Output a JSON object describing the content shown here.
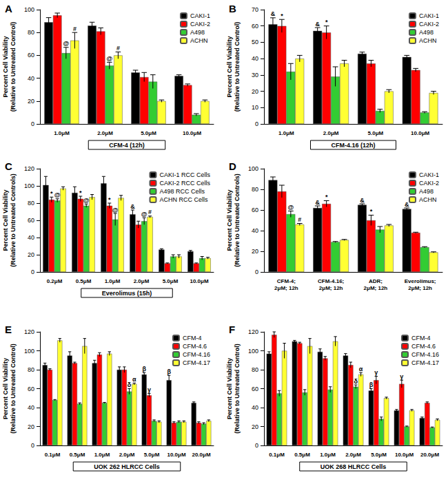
{
  "chart_data": [
    {
      "type": "bar",
      "title": "A",
      "ylabel": "Percent Cell Viability\n(Relative to Untreated Control)",
      "xlabel": "CFM-4 (12h)",
      "categories": [
        "1.0μM",
        "2.0μM",
        "5.0μM",
        "10.0μM"
      ],
      "ylim": [
        0,
        100
      ],
      "yticks": [
        0,
        20,
        40,
        60,
        80,
        100
      ],
      "grid": false,
      "legend": "top-right",
      "series": [
        {
          "name": "CAKI-1",
          "color": "#000000",
          "values": [
            89,
            86,
            45,
            42
          ],
          "errors": [
            4,
            3,
            2,
            1
          ],
          "annotations": [
            null,
            null,
            null,
            null
          ]
        },
        {
          "name": "CAKI-2",
          "color": "#ff0000",
          "values": [
            95,
            81,
            41,
            34
          ],
          "errors": [
            2,
            3,
            4,
            1
          ],
          "annotations": [
            null,
            null,
            null,
            null
          ]
        },
        {
          "name": "A498",
          "color": "#33cc33",
          "values": [
            62,
            51,
            37,
            8
          ],
          "errors": [
            5,
            3,
            6,
            1
          ],
          "annotations": [
            "@",
            "@",
            null,
            null
          ]
        },
        {
          "name": "ACHN",
          "color": "#ffff33",
          "values": [
            73,
            60,
            20,
            20
          ],
          "errors": [
            7,
            3,
            1,
            1
          ],
          "annotations": [
            "#",
            "#",
            null,
            null
          ]
        }
      ]
    },
    {
      "type": "bar",
      "title": "B",
      "ylabel": "Percent Cell Viability\n(Relative to Untreated Control)",
      "xlabel": "CFM-4.16 (12h)",
      "categories": [
        "1.0μM",
        "2.0μM",
        "5.0μM",
        "10.0μM"
      ],
      "ylim": [
        0,
        70
      ],
      "yticks": [
        0,
        10,
        20,
        30,
        40,
        50,
        60,
        70
      ],
      "grid": false,
      "legend": "top-right",
      "series": [
        {
          "name": "CAKI-1",
          "color": "#000000",
          "values": [
            61,
            57,
            43,
            41
          ],
          "errors": [
            4,
            2,
            1,
            1
          ],
          "annotations": [
            "&",
            "&",
            null,
            null
          ]
        },
        {
          "name": "CAKI-2",
          "color": "#ff0000",
          "values": [
            60,
            56,
            37,
            33
          ],
          "errors": [
            4,
            4,
            2,
            1
          ],
          "annotations": [
            "*",
            "*",
            null,
            null
          ]
        },
        {
          "name": "A498",
          "color": "#33cc33",
          "values": [
            32,
            29,
            8,
            7
          ],
          "errors": [
            5,
            6,
            1,
            0.5
          ],
          "annotations": [
            null,
            null,
            null,
            null
          ]
        },
        {
          "name": "ACHN",
          "color": "#ffff33",
          "values": [
            40,
            37,
            20,
            19
          ],
          "errors": [
            2,
            2,
            1,
            1
          ],
          "annotations": [
            null,
            null,
            null,
            null
          ]
        }
      ]
    },
    {
      "type": "bar",
      "title": "C",
      "ylabel": "Percent Cell Viability\n(Relative to Untreated Controls)",
      "xlabel": "Everolimus (15h)",
      "categories": [
        "0.2μM",
        "0.5μM",
        "1.0μM",
        "2.0μM",
        "5.0μM",
        "10.0μM"
      ],
      "ylim": [
        0,
        120
      ],
      "yticks": [
        0,
        20,
        40,
        60,
        80,
        100,
        120
      ],
      "grid": false,
      "legend": "top-right",
      "series": [
        {
          "name": "CAKI-1 RCC Cells",
          "color": "#000000",
          "values": [
            101,
            92,
            103,
            67,
            26,
            24
          ],
          "errors": [
            10,
            7,
            8,
            5,
            1,
            1
          ],
          "annotations": [
            null,
            null,
            null,
            "&",
            null,
            null
          ]
        },
        {
          "name": "CAKI-2 RCC Cells",
          "color": "#ff0000",
          "values": [
            84,
            85,
            77,
            55,
            10,
            10
          ],
          "errors": [
            3,
            3,
            3,
            4,
            0.5,
            0.5
          ],
          "annotations": [
            "*",
            "*",
            "*",
            null,
            null,
            null
          ]
        },
        {
          "name": "A498 RCC Cells",
          "color": "#33cc33",
          "values": [
            83,
            77,
            61,
            59,
            18,
            16
          ],
          "errors": [
            2,
            2,
            7,
            4,
            2,
            2
          ],
          "annotations": [
            "@",
            "@",
            "@",
            "@",
            null,
            null
          ]
        },
        {
          "name": "ACHN RCC Cells",
          "color": "#ffff33",
          "values": [
            97,
            87,
            86,
            64,
            18,
            16
          ],
          "errors": [
            2,
            3,
            3,
            1,
            2,
            1
          ],
          "annotations": [
            null,
            null,
            null,
            "#",
            null,
            null
          ]
        }
      ]
    },
    {
      "type": "bar",
      "title": "D",
      "ylabel": "Percent Cell Viability\n(Relative to Untreated Controls)",
      "categories": [
        "CFM-4;\n2μM; 12h",
        "CFM-4.16;\n2μM; 12h",
        "ADR;\n2μM; 12h",
        "Everolimus;\n2μM; 12h"
      ],
      "ylim": [
        0,
        100
      ],
      "yticks": [
        0,
        20,
        40,
        60,
        80,
        100
      ],
      "grid": false,
      "legend": "top-right",
      "series": [
        {
          "name": "CAKI-1",
          "color": "#000000",
          "values": [
            89,
            62,
            65,
            61
          ],
          "errors": [
            3,
            2,
            1,
            1
          ],
          "annotations": [
            null,
            "&",
            "&",
            "&"
          ]
        },
        {
          "name": "CAKI-2",
          "color": "#ff0000",
          "values": [
            78,
            66,
            50,
            38
          ],
          "errors": [
            6,
            3,
            5,
            0.5
          ],
          "annotations": [
            null,
            "*",
            "*",
            null
          ]
        },
        {
          "name": "A498",
          "color": "#33cc33",
          "values": [
            56,
            29,
            41,
            24
          ],
          "errors": [
            3,
            0.5,
            3,
            0.5
          ],
          "annotations": [
            "@",
            null,
            null,
            null
          ]
        },
        {
          "name": "ACHN",
          "color": "#ffff33",
          "values": [
            46,
            31,
            45,
            19
          ],
          "errors": [
            1,
            0.5,
            1,
            0.5
          ],
          "annotations": [
            "#",
            null,
            null,
            null
          ]
        }
      ]
    },
    {
      "type": "bar",
      "title": "E",
      "ylabel": "Percent Cell Viability\n(Relative to Untreated Control)",
      "xlabel": "UOK 262 HLRCC Cells",
      "categories": [
        "0.1μM",
        "0.5μM",
        "1.0μM",
        "2.0μM",
        "5.0μM",
        "10.0μM",
        "20.0μM"
      ],
      "ylim": [
        0,
        120
      ],
      "yticks": [
        0,
        20,
        40,
        60,
        80,
        100,
        120
      ],
      "grid": false,
      "legend": "top-right",
      "series": [
        {
          "name": "CFM-4",
          "color": "#000000",
          "values": [
            85,
            95,
            87,
            80,
            75,
            69,
            45
          ],
          "errors": [
            2,
            4,
            3,
            3,
            2,
            5,
            1
          ],
          "annotations": [
            null,
            null,
            null,
            null,
            "β",
            "β",
            null
          ]
        },
        {
          "name": "CFM-4.6",
          "color": "#ff0000",
          "values": [
            80,
            87,
            96,
            80,
            53,
            24,
            24
          ],
          "errors": [
            1,
            1,
            2,
            3,
            2,
            1,
            1
          ],
          "annotations": [
            null,
            null,
            null,
            null,
            "γ",
            null,
            null
          ]
        },
        {
          "name": "CFM-4.16",
          "color": "#33cc33",
          "values": [
            48,
            44,
            45,
            57,
            26,
            25,
            23
          ],
          "errors": [
            0.5,
            1,
            0.5,
            3,
            1,
            1,
            1
          ],
          "annotations": [
            null,
            null,
            null,
            "δ",
            null,
            null,
            null
          ]
        },
        {
          "name": "CFM-4.17",
          "color": "#ffff33",
          "values": [
            111,
            105,
            97,
            65,
            25,
            25,
            26
          ],
          "errors": [
            2,
            8,
            2,
            1,
            1,
            1,
            1
          ],
          "annotations": [
            null,
            null,
            null,
            "α",
            null,
            null,
            null
          ]
        }
      ]
    },
    {
      "type": "bar",
      "title": "F",
      "ylabel": "Percent Cell Viability\n(Relative to Untreated Control)",
      "xlabel": "UOK 268 HLRCC Cells",
      "categories": [
        "0.1μM",
        "0.5μM",
        "1.0μM",
        "2.0μM",
        "5.0μM",
        "10.0μM",
        "20.0μM"
      ],
      "ylim": [
        0,
        120
      ],
      "yticks": [
        0,
        20,
        40,
        60,
        80,
        100,
        120
      ],
      "grid": false,
      "legend": "top-right",
      "series": [
        {
          "name": "CFM-4",
          "color": "#000000",
          "values": [
            97,
            110,
            99,
            95,
            58,
            37,
            29
          ],
          "errors": [
            2,
            1,
            3,
            2,
            2,
            1,
            1
          ],
          "annotations": [
            null,
            null,
            null,
            null,
            "β",
            null,
            null
          ]
        },
        {
          "name": "CFM-4.6",
          "color": "#ff0000",
          "values": [
            117,
            108,
            92,
            85,
            69,
            65,
            45
          ],
          "errors": [
            3,
            1,
            2,
            3,
            4,
            4,
            1
          ],
          "annotations": [
            null,
            null,
            null,
            null,
            "γ",
            "γ",
            null
          ]
        },
        {
          "name": "CFM-4.16",
          "color": "#33cc33",
          "values": [
            55,
            56,
            59,
            62,
            28,
            20,
            19
          ],
          "errors": [
            3,
            3,
            3,
            2,
            2,
            0.5,
            0.5
          ],
          "annotations": [
            null,
            null,
            null,
            "δ",
            null,
            null,
            null
          ]
        },
        {
          "name": "CFM-4.17",
          "color": "#ffff33",
          "values": [
            100,
            105,
            110,
            75,
            50,
            37,
            27
          ],
          "errors": [
            8,
            8,
            5,
            2,
            1,
            1,
            1
          ],
          "annotations": [
            null,
            null,
            null,
            "α",
            null,
            null,
            null
          ]
        }
      ]
    }
  ]
}
